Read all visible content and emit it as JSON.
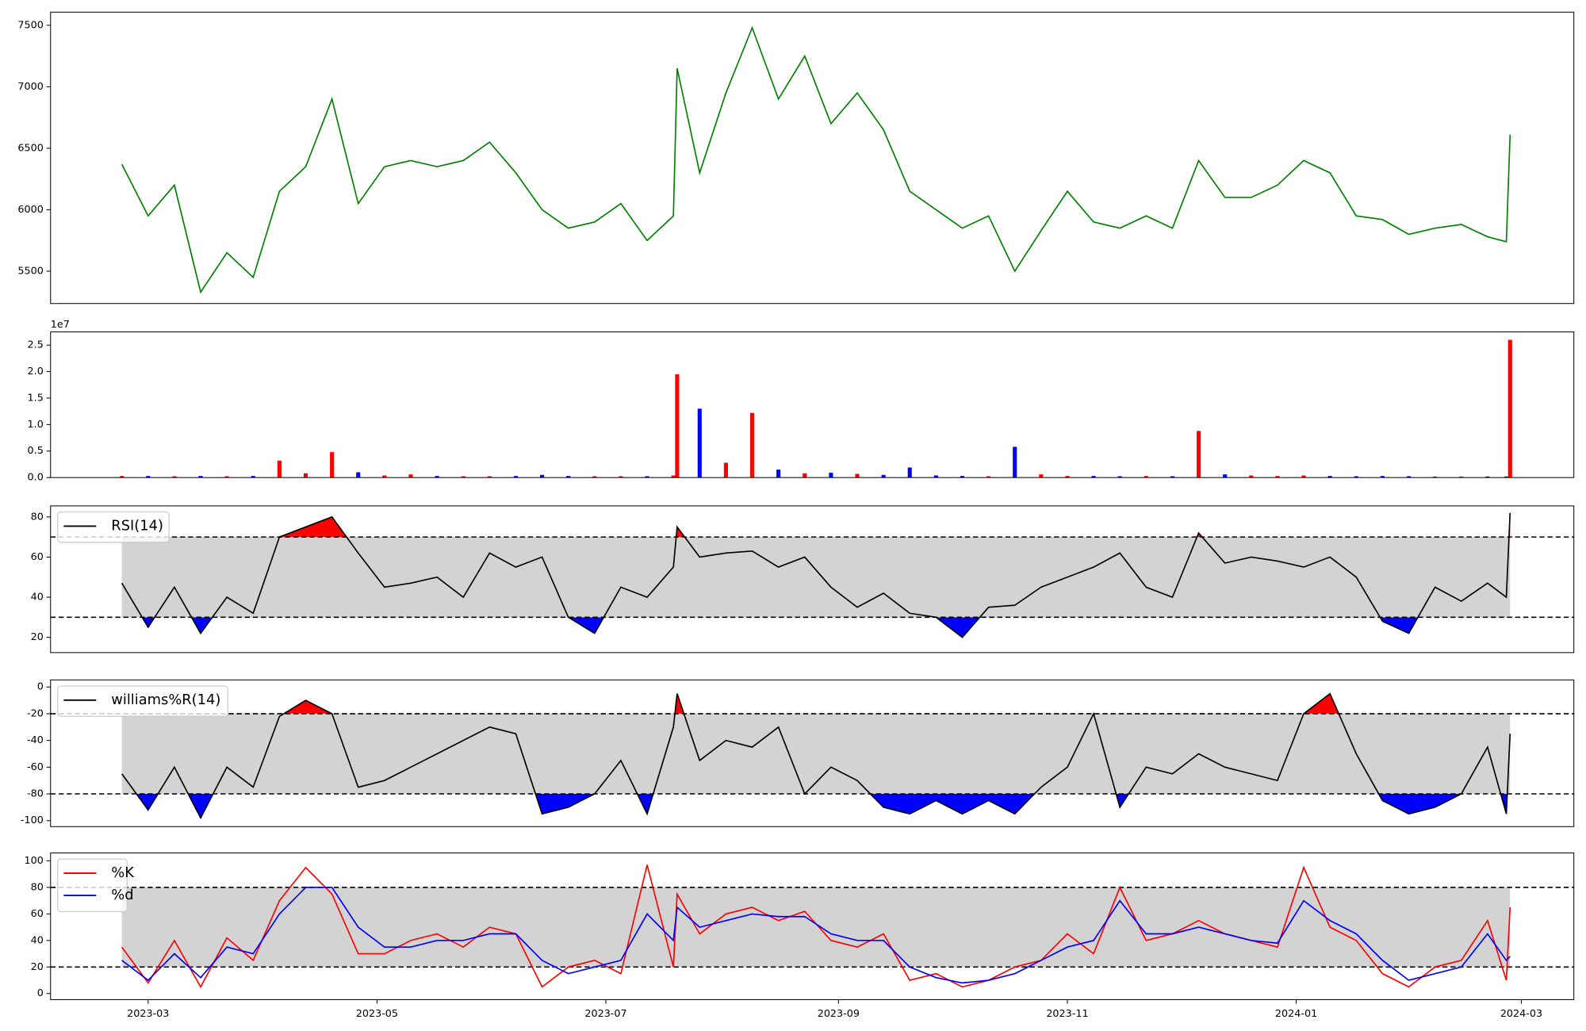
{
  "chart_data": [
    {
      "type": "line",
      "color": "green",
      "values": [
        6370,
        5950,
        6200,
        5330,
        5650,
        5450,
        6150,
        6350,
        6900,
        6050,
        6350,
        6400,
        6350,
        6400,
        6550,
        6300,
        6000,
        5850,
        5900,
        6050,
        5750,
        5950,
        7150,
        6300,
        6950,
        7480,
        6900,
        7250,
        6700,
        6950,
        6650,
        6150,
        6000,
        5850,
        5950,
        5500,
        5830,
        6150,
        5900,
        5850,
        5950,
        5850,
        6400,
        6100,
        6100,
        6200,
        6400,
        6300,
        5950,
        5920,
        5800,
        5850,
        5880,
        5780,
        5740,
        6610
      ],
      "ylim": [
        5237,
        7607
      ],
      "yticks": [
        5500,
        6000,
        6500,
        7000,
        7500
      ]
    },
    {
      "type": "bar",
      "up_color": "red",
      "down_color": "blue",
      "offset_text": "1e7",
      "values": [
        300000,
        300000,
        250000,
        300000,
        250000,
        300000,
        3200000,
        800000,
        4800000,
        1000000,
        400000,
        600000,
        300000,
        250000,
        250000,
        300000,
        500000,
        300000,
        250000,
        250000,
        250000,
        400000,
        19500000,
        13000000,
        2800000,
        12200000,
        1500000,
        800000,
        900000,
        700000,
        500000,
        1900000,
        400000,
        300000,
        250000,
        5800000,
        600000,
        300000,
        300000,
        250000,
        300000,
        250000,
        8800000,
        600000,
        400000,
        300000,
        400000,
        300000,
        250000,
        300000,
        250000,
        200000,
        200000,
        200000,
        200000,
        26000000
      ],
      "ylim": [
        0,
        27500000
      ],
      "yticks": [
        {
          "value": 0,
          "label": "0.0"
        },
        {
          "value": 5000000,
          "label": "0.5"
        },
        {
          "value": 10000000,
          "label": "1.0"
        },
        {
          "value": 15000000,
          "label": "1.5"
        },
        {
          "value": 20000000,
          "label": "2.0"
        },
        {
          "value": 25000000,
          "label": "2.5"
        }
      ]
    },
    {
      "type": "oscillator",
      "thresholds": [
        30,
        70
      ],
      "band_color": "lightgray",
      "above_color": "red",
      "below_color": "blue",
      "series": [
        {
          "name": "RSI(14)",
          "color": "black",
          "values": [
            47,
            25,
            45,
            22,
            40,
            32,
            70,
            75,
            80,
            62,
            45,
            47,
            50,
            40,
            62,
            55,
            60,
            30,
            22,
            45,
            40,
            55,
            75,
            60,
            62,
            63,
            55,
            60,
            45,
            35,
            42,
            32,
            30,
            20,
            35,
            36,
            45,
            50,
            55,
            62,
            45,
            40,
            72,
            57,
            60,
            58,
            55,
            60,
            50,
            28,
            22,
            45,
            38,
            47,
            40,
            82
          ]
        }
      ],
      "ylim": [
        12.4,
        85.5
      ],
      "yticks": [
        20,
        40,
        60,
        80
      ]
    },
    {
      "type": "oscillator",
      "thresholds": [
        -80,
        -20
      ],
      "band_color": "lightgray",
      "above_color": "red",
      "below_color": "blue",
      "series": [
        {
          "name": "williams%R(14)",
          "color": "black",
          "values": [
            -65,
            -92,
            -60,
            -98,
            -60,
            -75,
            -22,
            -10,
            -20,
            -75,
            -70,
            -60,
            -50,
            -40,
            -30,
            -35,
            -95,
            -90,
            -80,
            -55,
            -95,
            -30,
            -5,
            -55,
            -40,
            -45,
            -30,
            -80,
            -60,
            -70,
            -90,
            -95,
            -85,
            -95,
            -85,
            -95,
            -75,
            -60,
            -20,
            -90,
            -60,
            -65,
            -50,
            -60,
            -65,
            -70,
            -20,
            -5,
            -50,
            -85,
            -95,
            -90,
            -80,
            -45,
            -95,
            -35
          ]
        }
      ],
      "ylim": [
        -104.5,
        5.3
      ],
      "yticks": [
        -100,
        -80,
        -60,
        -40,
        -20,
        0
      ]
    },
    {
      "type": "oscillator",
      "thresholds": [
        20,
        80
      ],
      "band_color": "lightgray",
      "series": [
        {
          "name": "%K",
          "color": "red",
          "values": [
            35,
            8,
            40,
            5,
            42,
            25,
            70,
            95,
            75,
            30,
            30,
            40,
            45,
            35,
            50,
            45,
            5,
            20,
            25,
            15,
            97,
            20,
            75,
            45,
            60,
            65,
            55,
            62,
            40,
            35,
            45,
            10,
            15,
            5,
            10,
            20,
            25,
            45,
            30,
            80,
            40,
            45,
            55,
            45,
            40,
            35,
            95,
            50,
            40,
            15,
            5,
            20,
            25,
            55,
            10,
            65
          ]
        },
        {
          "name": "%d",
          "color": "blue",
          "values": [
            25,
            10,
            30,
            12,
            35,
            30,
            60,
            80,
            80,
            50,
            35,
            35,
            40,
            40,
            45,
            45,
            25,
            15,
            20,
            25,
            60,
            40,
            65,
            50,
            55,
            60,
            58,
            58,
            45,
            40,
            40,
            20,
            12,
            8,
            10,
            15,
            25,
            35,
            40,
            70,
            45,
            45,
            50,
            45,
            40,
            38,
            70,
            55,
            45,
            25,
            10,
            15,
            20,
            45,
            25,
            28
          ]
        }
      ],
      "ylim": [
        -4.6,
        106
      ],
      "yticks": [
        0,
        20,
        40,
        60,
        80,
        100
      ],
      "x": [
        "2023-02-22",
        "2023-03-01",
        "2023-03-08",
        "2023-03-15",
        "2023-03-22",
        "2023-03-29",
        "2023-04-05",
        "2023-04-12",
        "2023-04-19",
        "2023-04-26",
        "2023-05-03",
        "2023-05-10",
        "2023-05-17",
        "2023-05-24",
        "2023-05-31",
        "2023-06-07",
        "2023-06-14",
        "2023-06-21",
        "2023-06-28",
        "2023-07-05",
        "2023-07-12",
        "2023-07-19",
        "2023-07-20",
        "2023-07-26",
        "2023-08-02",
        "2023-08-09",
        "2023-08-16",
        "2023-08-23",
        "2023-08-30",
        "2023-09-06",
        "2023-09-13",
        "2023-09-20",
        "2023-09-27",
        "2023-10-04",
        "2023-10-11",
        "2023-10-18",
        "2023-10-25",
        "2023-11-01",
        "2023-11-08",
        "2023-11-15",
        "2023-11-22",
        "2023-11-29",
        "2023-12-06",
        "2023-12-13",
        "2023-12-20",
        "2023-12-27",
        "2024-01-03",
        "2024-01-10",
        "2024-01-17",
        "2024-01-24",
        "2024-01-31",
        "2024-02-07",
        "2024-02-14",
        "2024-02-21",
        "2024-02-26",
        "2024-02-27"
      ],
      "xlim": [
        "2023-02-03",
        "2024-03-15"
      ],
      "xticks": [
        {
          "value": "2023-03-01",
          "label": "2023-03"
        },
        {
          "value": "2023-05-01",
          "label": "2023-05"
        },
        {
          "value": "2023-07-01",
          "label": "2023-07"
        },
        {
          "value": "2023-09-01",
          "label": "2023-09"
        },
        {
          "value": "2023-11-01",
          "label": "2023-11"
        },
        {
          "value": "2024-01-01",
          "label": "2024-01"
        },
        {
          "value": "2024-03-01",
          "label": "2024-03"
        }
      ]
    }
  ]
}
